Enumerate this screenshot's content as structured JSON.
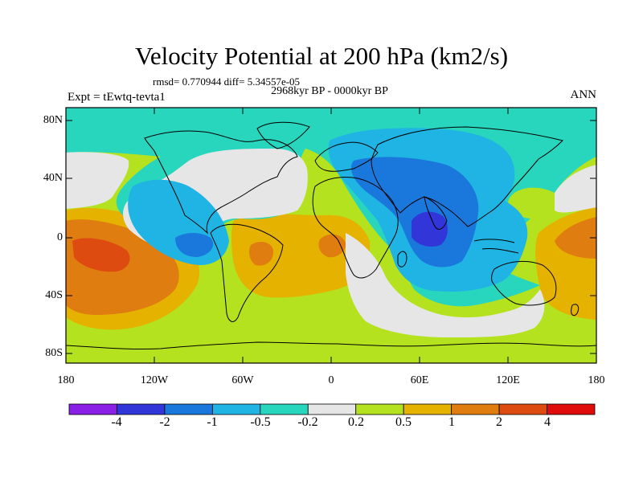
{
  "title": "Velocity Potential at 200 hPa (km2/s)",
  "stats_text": "rmsd= 0.770944 diff= 5.34557e-05",
  "period": "2968kyr BP - 0000kyr BP",
  "experiment": "Expt = tEwtq-tevta1",
  "season": "ANN",
  "lat_labels": [
    "80N",
    "40N",
    "0",
    "40S",
    "80S"
  ],
  "lon_labels": [
    "180",
    "120W",
    "60W",
    "0",
    "60E",
    "120E",
    "180"
  ],
  "colorbar": {
    "labels": [
      "-4",
      "-2",
      "-1",
      "-0.5",
      "-0.2",
      "0.2",
      "0.5",
      "1",
      "2",
      "4"
    ],
    "colors": [
      "#8a1fe6",
      "#3236d8",
      "#1a78dc",
      "#20b4e4",
      "#28d6bd",
      "#e6e6e6",
      "#b4e21e",
      "#e6b200",
      "#e07d10",
      "#de4b10",
      "#e00c0c"
    ]
  },
  "field_colors": {
    "dark_blue": "#3236d8",
    "blue": "#1a78dc",
    "light_blue": "#20b4e4",
    "teal": "#28d6bd",
    "neutral": "#e6e6e6",
    "yellow_green": "#b4e21e",
    "gold": "#e6b200",
    "orange": "#e07d10",
    "red_orange": "#de4b10"
  }
}
